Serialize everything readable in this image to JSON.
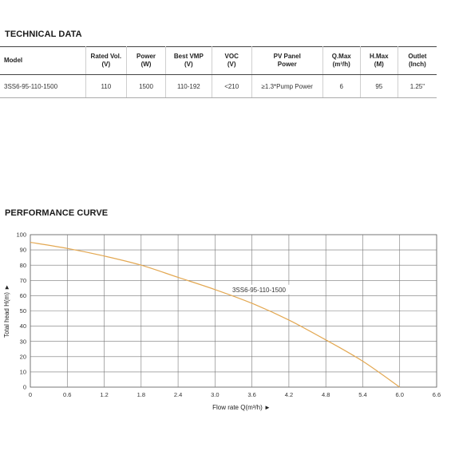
{
  "technical_data": {
    "title": "TECHNICAL DATA",
    "headers": [
      {
        "line1": "Model",
        "line2": ""
      },
      {
        "line1": "Rated Vol.",
        "line2": "(V)"
      },
      {
        "line1": "Power",
        "line2": "(W)"
      },
      {
        "line1": "Best VMP",
        "line2": "(V)"
      },
      {
        "line1": "VOC",
        "line2": "(V)"
      },
      {
        "line1": "PV Panel",
        "line2": "Power"
      },
      {
        "line1": "Q.Max",
        "line2": "(m³/h)"
      },
      {
        "line1": "H.Max",
        "line2": "(M)"
      },
      {
        "line1": "Outlet",
        "line2": "(Inch)"
      }
    ],
    "rows": [
      [
        "3SS6-95-110-1500",
        "110",
        "1500",
        "110-192",
        "<210",
        "≥1.3*Pump Power",
        "6",
        "95",
        "1.25\""
      ]
    ]
  },
  "performance_curve": {
    "title": "PERFORMANCE CURVE"
  },
  "chart_data": {
    "type": "line",
    "title": "PERFORMANCE CURVE",
    "xlabel": "Flow rate Q(m³/h) ►",
    "ylabel": "Total head H(m) ►",
    "xlim": [
      0,
      6.6
    ],
    "ylim": [
      0,
      100
    ],
    "x_ticks": [
      "0",
      "0.6",
      "1.2",
      "1.8",
      "2.4",
      "3.0",
      "3.6",
      "4.2",
      "4.8",
      "5.4",
      "6.0",
      "6.6"
    ],
    "y_ticks": [
      "0",
      "10",
      "20",
      "30",
      "40",
      "50",
      "60",
      "70",
      "80",
      "90",
      "100"
    ],
    "grid": true,
    "series": [
      {
        "name": "3SS6-95-110-1500",
        "color": "#e3a852",
        "x": [
          0,
          0.6,
          1.2,
          1.8,
          2.4,
          3.0,
          3.6,
          4.2,
          4.8,
          5.4,
          6.0
        ],
        "y": [
          95,
          91,
          86,
          80,
          72,
          64,
          55,
          44,
          31,
          17,
          0
        ]
      }
    ]
  }
}
